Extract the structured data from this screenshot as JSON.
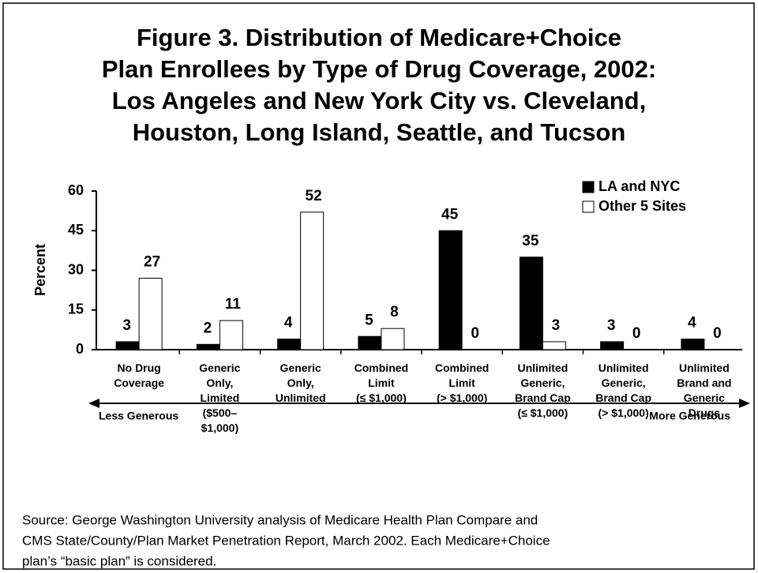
{
  "chart_data": {
    "type": "bar",
    "title": [
      "Figure 3. Distribution of Medicare+Choice",
      "Plan Enrollees by Type of Drug Coverage, 2002:",
      "Los Angeles and New York City vs. Cleveland,",
      "Houston, Long Island, Seattle, and Tucson"
    ],
    "ylabel": "Percent",
    "categories": [
      "No Drug\nCoverage",
      "Generic\nOnly,\nLimited\n($500–\n$1,000)",
      "Generic\nOnly,\nUnlimited",
      "Combined\nLimit\n(≤ $1,000)",
      "Combined\nLimit\n(> $1,000)",
      "Unlimited\nGeneric,\nBrand Cap\n(≤ $1,000)",
      "Unlimited\nGeneric,\nBrand Cap\n(> $1,000)",
      "Unlimited\nBrand and\nGeneric\nDrugs"
    ],
    "series": [
      {
        "name": "LA and NYC",
        "color": "#000000",
        "values": [
          3,
          2,
          4,
          5,
          45,
          35,
          3,
          4
        ]
      },
      {
        "name": "Other 5 Sites",
        "color": "#ffffff",
        "values": [
          27,
          11,
          52,
          8,
          0,
          3,
          0,
          0
        ]
      }
    ],
    "ylim": [
      0,
      60
    ],
    "yticks": [
      0,
      15,
      30,
      45,
      60
    ],
    "legend": "upper right",
    "annotations": [
      "Less Generous",
      "More Generous"
    ],
    "source": [
      "Source: George Washington University analysis of Medicare Health Plan Compare and",
      "CMS State/County/Plan Market Penetration Report, March 2002.  Each Medicare+Choice",
      "plan’s “basic plan” is considered."
    ]
  }
}
